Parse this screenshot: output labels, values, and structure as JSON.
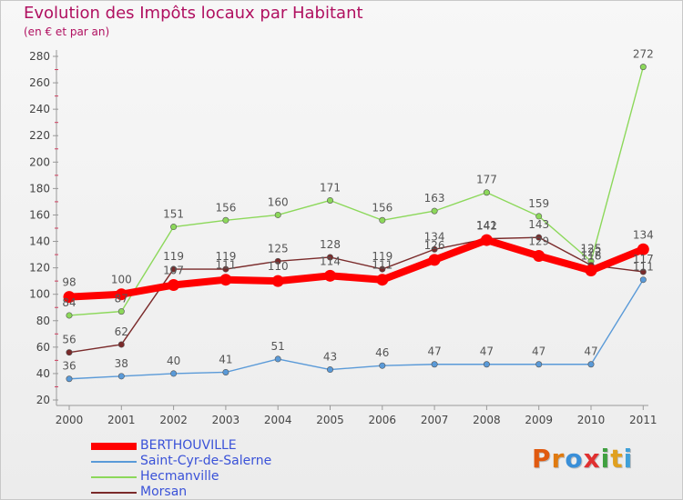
{
  "title": "Evolution des Impôts locaux par Habitant",
  "subtitle": "(en € et par an)",
  "logo": {
    "text": "Proxiti",
    "letters": [
      "P",
      "r",
      "o",
      "x",
      "i",
      "t",
      "i"
    ],
    "letter_colors": [
      "#e05a10",
      "#e07a10",
      "#3a8fd8",
      "#e03030",
      "#40a040",
      "#e0a020",
      "#40a0d8"
    ]
  },
  "chart_data": {
    "type": "line",
    "x": [
      "2000",
      "2001",
      "2002",
      "2003",
      "2004",
      "2005",
      "2006",
      "2007",
      "2008",
      "2009",
      "2010",
      "2011"
    ],
    "ylim": [
      20,
      280
    ],
    "yticks": [
      "20",
      "40",
      "60",
      "80",
      "100",
      "120",
      "140",
      "160",
      "180",
      "200",
      "220",
      "240",
      "260",
      "280"
    ],
    "grid": false,
    "legend_position": "bottom-left",
    "series": [
      {
        "name": "BERTHOUVILLE",
        "color": "#ff0000",
        "emphasis": true,
        "values": [
          98,
          100,
          107,
          111,
          110,
          114,
          111,
          126,
          141,
          129,
          118,
          134
        ]
      },
      {
        "name": "Saint-Cyr-de-Salerne",
        "color": "#5a9ad8",
        "emphasis": false,
        "values": [
          36,
          38,
          40,
          41,
          51,
          43,
          46,
          47,
          47,
          47,
          47,
          111
        ]
      },
      {
        "name": "Hecmanville",
        "color": "#8cd85a",
        "emphasis": false,
        "values": [
          84,
          87,
          151,
          156,
          160,
          171,
          156,
          163,
          177,
          159,
          125,
          272
        ]
      },
      {
        "name": "Morsan",
        "color": "#7a2a2a",
        "emphasis": false,
        "values": [
          56,
          62,
          119,
          119,
          125,
          128,
          119,
          134,
          142,
          143,
          122,
          117
        ]
      }
    ],
    "labels": [
      [
        "98",
        "100",
        "107",
        "111",
        "110",
        "114",
        "111",
        "126",
        "141",
        "129",
        "118",
        "134"
      ],
      [
        "36",
        "38",
        "40",
        "41",
        "51",
        "43",
        "46",
        "47",
        "47",
        "47",
        "47",
        "111"
      ],
      [
        "84",
        "87",
        "151",
        "156",
        "160",
        "171",
        "156",
        "163",
        "177",
        "159",
        "125",
        "272"
      ],
      [
        "56",
        "62",
        "119",
        "119",
        "125",
        "128",
        "119",
        "134",
        "142",
        "143",
        "122",
        "117"
      ]
    ]
  }
}
